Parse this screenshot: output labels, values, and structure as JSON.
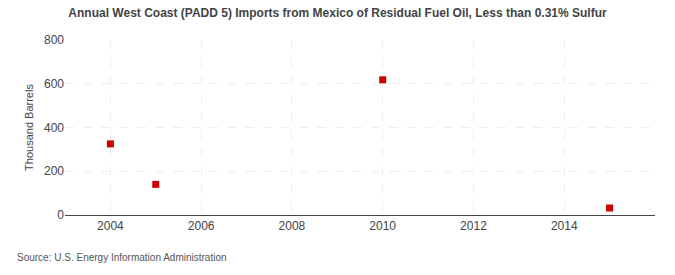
{
  "chart_data": {
    "type": "scatter",
    "title": "Annual West Coast (PADD 5) Imports from Mexico of Residual Fuel Oil, Less than 0.31% Sulfur",
    "ylabel": "Thousand Barrels",
    "annotations": [
      "Source: U.S. Energy Information Administration"
    ],
    "x": [
      2004,
      2005,
      2010,
      2015
    ],
    "values": [
      325,
      140,
      618,
      32
    ],
    "color": "#cc0000",
    "marker": "square",
    "xlim": [
      2003.0,
      2016.0
    ],
    "xticks": [
      2004,
      2006,
      2008,
      2010,
      2012,
      2014
    ],
    "ylim": [
      0,
      800
    ],
    "yticks": [
      0,
      200,
      400,
      600,
      800
    ],
    "grid": true
  }
}
